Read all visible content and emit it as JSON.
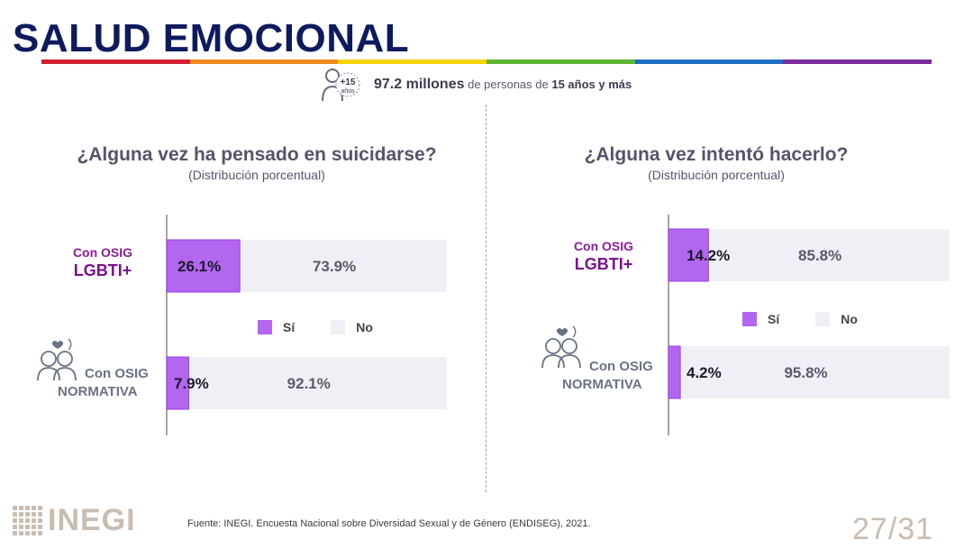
{
  "slide": {
    "title": "SALUD EMOCIONAL",
    "rainbow_colors": [
      "#d2202f",
      "#f08a1c",
      "#f5d400",
      "#5cb531",
      "#1f6fc2",
      "#7c2c9a"
    ],
    "population": {
      "icon_badge": "+15",
      "icon_badge_sub": "años",
      "value": "97.2 millones",
      "text_mid": " de personas de ",
      "text_bold": "15 años y más"
    },
    "source": "Fuente:  INEGI. Encuesta Nacional sobre Diversidad Sexual y de Género (ENDISEG), 2021.",
    "page_number": "27/31",
    "logo_text": "INEGI"
  },
  "groups": {
    "lgbti_line1": "Con OSIG",
    "lgbti_line2": "LGBTI+",
    "norm_line1": "Con OSIG",
    "norm_line2": "NORMATIVA"
  },
  "legend": {
    "yes": "Sí",
    "no": "No"
  },
  "colors": {
    "yes": "#b366ee",
    "yes_border": "#9a3fe0",
    "no": "#eef0f5",
    "axis": "#888888"
  },
  "chart_data": [
    {
      "type": "bar",
      "orientation": "horizontal",
      "stacked": true,
      "title": "¿Alguna vez ha pensado en suicidarse?",
      "subtitle": "(Distribución porcentual)",
      "categories": [
        "Con OSIG LGBTI+",
        "Con OSIG NORMATIVA"
      ],
      "series": [
        {
          "name": "Sí",
          "values": [
            26.1,
            7.9
          ],
          "labels": [
            "26.1%",
            "7.9%"
          ]
        },
        {
          "name": "No",
          "values": [
            73.9,
            92.1
          ],
          "labels": [
            "73.9%",
            "92.1%"
          ]
        }
      ],
      "xlim": [
        0,
        100
      ],
      "legend": "center"
    },
    {
      "type": "bar",
      "orientation": "horizontal",
      "stacked": true,
      "title": "¿Alguna vez intentó hacerlo?",
      "subtitle": "(Distribución porcentual)",
      "categories": [
        "Con OSIG LGBTI+",
        "Con OSIG NORMATIVA"
      ],
      "series": [
        {
          "name": "Sí",
          "values": [
            14.2,
            4.2
          ],
          "labels": [
            "14.2%",
            "4.2%"
          ]
        },
        {
          "name": "No",
          "values": [
            85.8,
            95.8
          ],
          "labels": [
            "85.8%",
            "95.8%"
          ]
        }
      ],
      "xlim": [
        0,
        100
      ],
      "legend": "center"
    }
  ]
}
